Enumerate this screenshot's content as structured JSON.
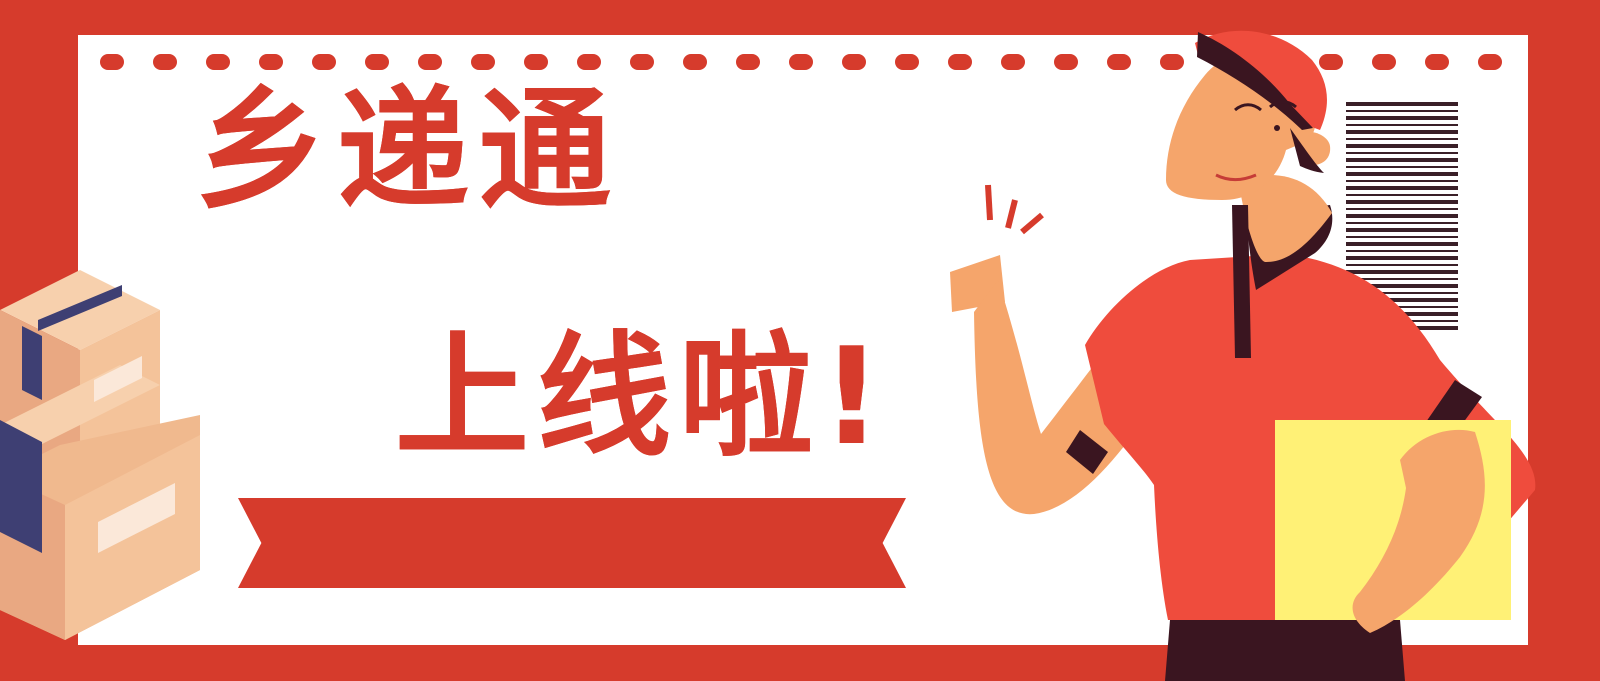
{
  "banner": {
    "title_line1": "乡递通",
    "title_line2": "上线啦!"
  },
  "colors": {
    "background_red": "#d63b2c",
    "card_white": "#ffffff",
    "barcode_dark": "#3a1f28",
    "box_light": "#f4c39a",
    "box_shadow": "#e9a882",
    "box_tape": "#3e3f73",
    "courier_shirt": "#ef4c3d",
    "courier_skin": "#f5a56b",
    "courier_dark": "#3a1520",
    "package_yellow": "#fff176"
  },
  "icons": {
    "boxes": "stacked-boxes-icon",
    "courier": "courier-character-icon",
    "barcode": "barcode-icon"
  }
}
